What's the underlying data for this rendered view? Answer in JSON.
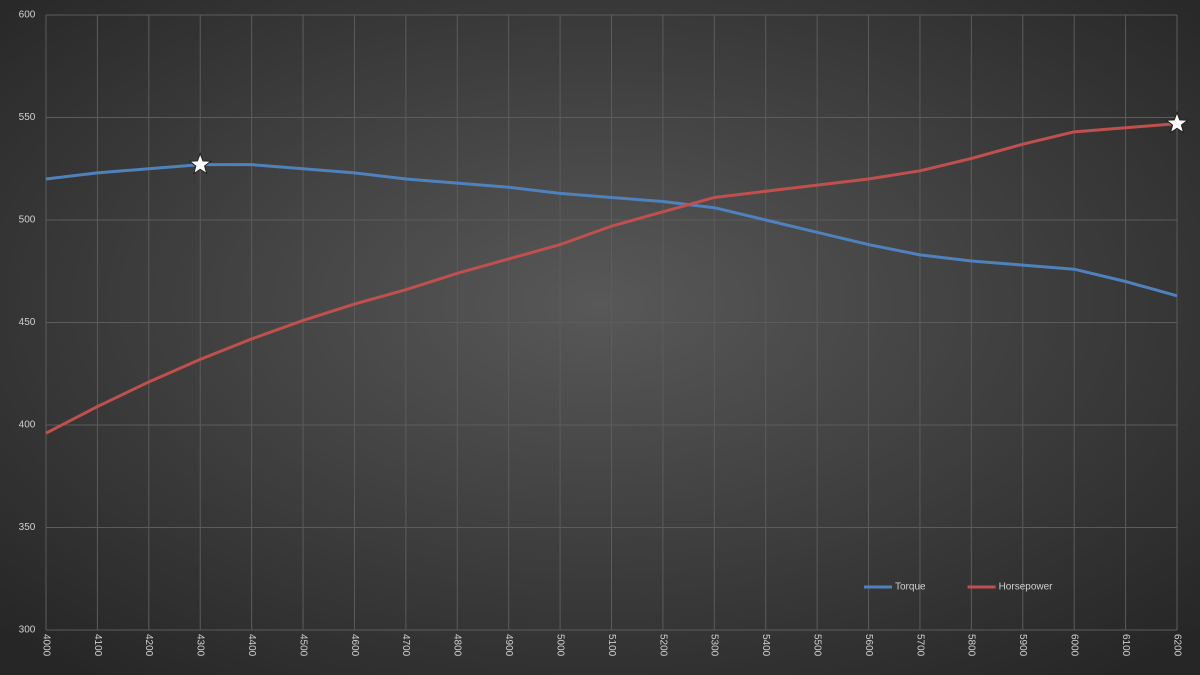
{
  "chart_data": {
    "type": "line",
    "x": [
      4000,
      4100,
      4200,
      4300,
      4400,
      4500,
      4600,
      4700,
      4800,
      4900,
      5000,
      5100,
      5200,
      5300,
      5400,
      5500,
      5600,
      5700,
      5800,
      5900,
      6000,
      6100,
      6200
    ],
    "series": [
      {
        "name": "Torque",
        "color": "#4f81bd",
        "values": [
          520,
          523,
          525,
          527,
          527,
          525,
          523,
          520,
          518,
          516,
          513,
          511,
          509,
          506,
          500,
          494,
          488,
          483,
          480,
          478,
          476,
          470,
          463
        ]
      },
      {
        "name": "Horsepower",
        "color": "#c0504d",
        "values": [
          396,
          409,
          421,
          432,
          442,
          451,
          459,
          466,
          474,
          481,
          488,
          497,
          504,
          511,
          514,
          517,
          520,
          524,
          530,
          537,
          543,
          545,
          547
        ]
      }
    ],
    "xlim": [
      4000,
      6200
    ],
    "xticks": [
      4000,
      4100,
      4200,
      4300,
      4400,
      4500,
      4600,
      4700,
      4800,
      4900,
      5000,
      5100,
      5200,
      5300,
      5400,
      5500,
      5600,
      5700,
      5800,
      5900,
      6000,
      6100,
      6200
    ],
    "ylim": [
      300,
      600
    ],
    "yticks": [
      300,
      350,
      400,
      450,
      500,
      550,
      600
    ],
    "grid": true,
    "legend": "lower right",
    "highlight_max": true
  }
}
